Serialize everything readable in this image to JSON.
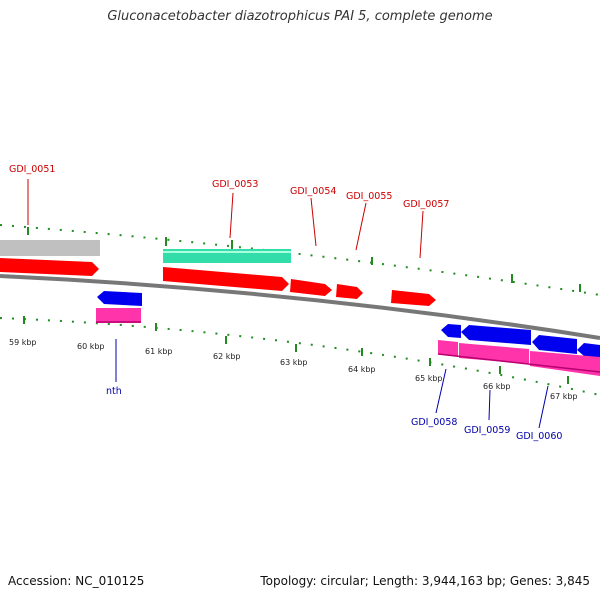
{
  "title": "Gluconacetobacter diazotrophicus PAI 5, complete genome",
  "footer": {
    "accession": "Accession: NC_010125",
    "summary": "Topology: circular; Length: 3,944,163 bp; Genes: 3,845"
  },
  "colors": {
    "forward_cds": "#ff0000",
    "reverse_cds": "#0000ee",
    "rna_forward": "#33ddaa",
    "rna_reverse": "#ff33aa",
    "gray_feature": "#c0c0c0",
    "backbone": "#808080",
    "gc_tick": "#228b22",
    "label_forward": "#cc0000",
    "label_reverse": "#0000aa"
  },
  "scale_labels": [
    "59 kbp",
    "60 kbp",
    "61 kbp",
    "62 kbp",
    "63 kbp",
    "64 kbp",
    "65 kbp",
    "66 kbp",
    "67 kbp"
  ],
  "forward_labels": [
    "GDI_0051",
    "GDI_0053",
    "GDI_0054",
    "GDI_0055",
    "GDI_0057"
  ],
  "reverse_labels": [
    "nth",
    "GDI_0058",
    "GDI_0059",
    "GDI_0060"
  ]
}
